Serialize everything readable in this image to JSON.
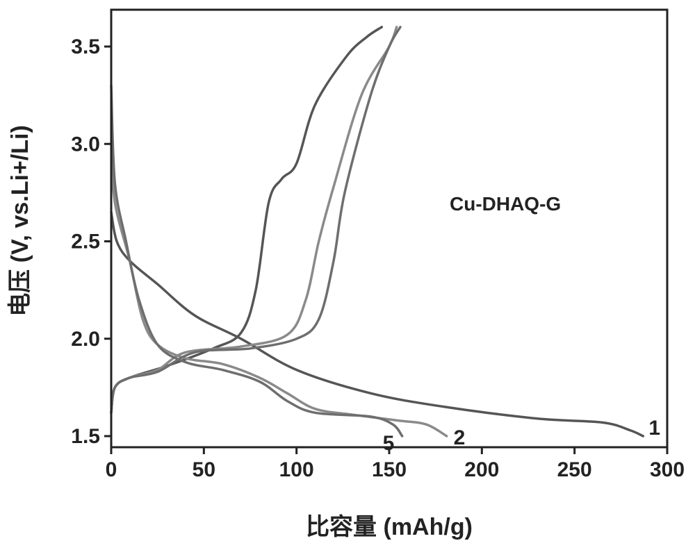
{
  "chart_data": {
    "type": "line",
    "title": "",
    "xlabel": "比容量 (mAh/g)",
    "ylabel": "电压 (V, vs.Li+/Li)",
    "xlim": [
      0,
      300
    ],
    "ylim": [
      1.4,
      3.65
    ],
    "x_ticks": [
      0,
      50,
      100,
      150,
      200,
      250,
      300
    ],
    "y_ticks": [
      1.5,
      2.0,
      2.5,
      3.0,
      3.5
    ],
    "x_tick_labels": [
      "0",
      "50",
      "100",
      "150",
      "200",
      "250",
      "300"
    ],
    "y_tick_labels": [
      "1.5",
      "2.0",
      "2.5",
      "3.0",
      "3.5"
    ],
    "grid": false,
    "legend": "none",
    "annotation": "Cu-DHAQ-G",
    "series": [
      {
        "name": "1",
        "color": "#555555",
        "discharge": [
          [
            0,
            2.65
          ],
          [
            3,
            2.5
          ],
          [
            10,
            2.4
          ],
          [
            25,
            2.28
          ],
          [
            45,
            2.12
          ],
          [
            70,
            2.0
          ],
          [
            100,
            1.84
          ],
          [
            140,
            1.72
          ],
          [
            180,
            1.65
          ],
          [
            230,
            1.59
          ],
          [
            265,
            1.57
          ],
          [
            280,
            1.53
          ],
          [
            287,
            1.5
          ]
        ],
        "charge": [
          [
            0,
            1.62
          ],
          [
            2,
            1.75
          ],
          [
            10,
            1.8
          ],
          [
            30,
            1.86
          ],
          [
            55,
            1.95
          ],
          [
            70,
            2.03
          ],
          [
            78,
            2.25
          ],
          [
            85,
            2.7
          ],
          [
            92,
            2.82
          ],
          [
            100,
            2.9
          ],
          [
            110,
            3.2
          ],
          [
            127,
            3.45
          ],
          [
            138,
            3.55
          ],
          [
            146,
            3.6
          ]
        ]
      },
      {
        "name": "2",
        "color": "#8a8a8a",
        "discharge": [
          [
            0,
            3.0
          ],
          [
            2,
            2.7
          ],
          [
            10,
            2.4
          ],
          [
            17,
            2.1
          ],
          [
            25,
            1.97
          ],
          [
            40,
            1.9
          ],
          [
            60,
            1.87
          ],
          [
            80,
            1.8
          ],
          [
            95,
            1.72
          ],
          [
            110,
            1.64
          ],
          [
            130,
            1.61
          ],
          [
            155,
            1.58
          ],
          [
            170,
            1.56
          ],
          [
            181,
            1.5
          ]
        ],
        "charge": [
          [
            0,
            1.62
          ],
          [
            2,
            1.75
          ],
          [
            10,
            1.8
          ],
          [
            25,
            1.84
          ],
          [
            40,
            1.93
          ],
          [
            70,
            1.96
          ],
          [
            95,
            2.02
          ],
          [
            105,
            2.2
          ],
          [
            112,
            2.5
          ],
          [
            120,
            2.78
          ],
          [
            135,
            3.25
          ],
          [
            150,
            3.5
          ],
          [
            154,
            3.6
          ]
        ]
      },
      {
        "name": "5",
        "color": "#6e6e6e",
        "discharge": [
          [
            0,
            3.3
          ],
          [
            2,
            2.8
          ],
          [
            8,
            2.5
          ],
          [
            15,
            2.2
          ],
          [
            25,
            1.97
          ],
          [
            40,
            1.88
          ],
          [
            60,
            1.84
          ],
          [
            80,
            1.78
          ],
          [
            95,
            1.68
          ],
          [
            110,
            1.62
          ],
          [
            140,
            1.6
          ],
          [
            152,
            1.56
          ],
          [
            157,
            1.5
          ]
        ],
        "charge": [
          [
            0,
            1.62
          ],
          [
            2,
            1.75
          ],
          [
            10,
            1.8
          ],
          [
            25,
            1.83
          ],
          [
            45,
            1.93
          ],
          [
            75,
            1.95
          ],
          [
            100,
            2.0
          ],
          [
            112,
            2.1
          ],
          [
            120,
            2.4
          ],
          [
            126,
            2.75
          ],
          [
            140,
            3.25
          ],
          [
            150,
            3.5
          ],
          [
            156,
            3.6
          ]
        ]
      }
    ]
  }
}
